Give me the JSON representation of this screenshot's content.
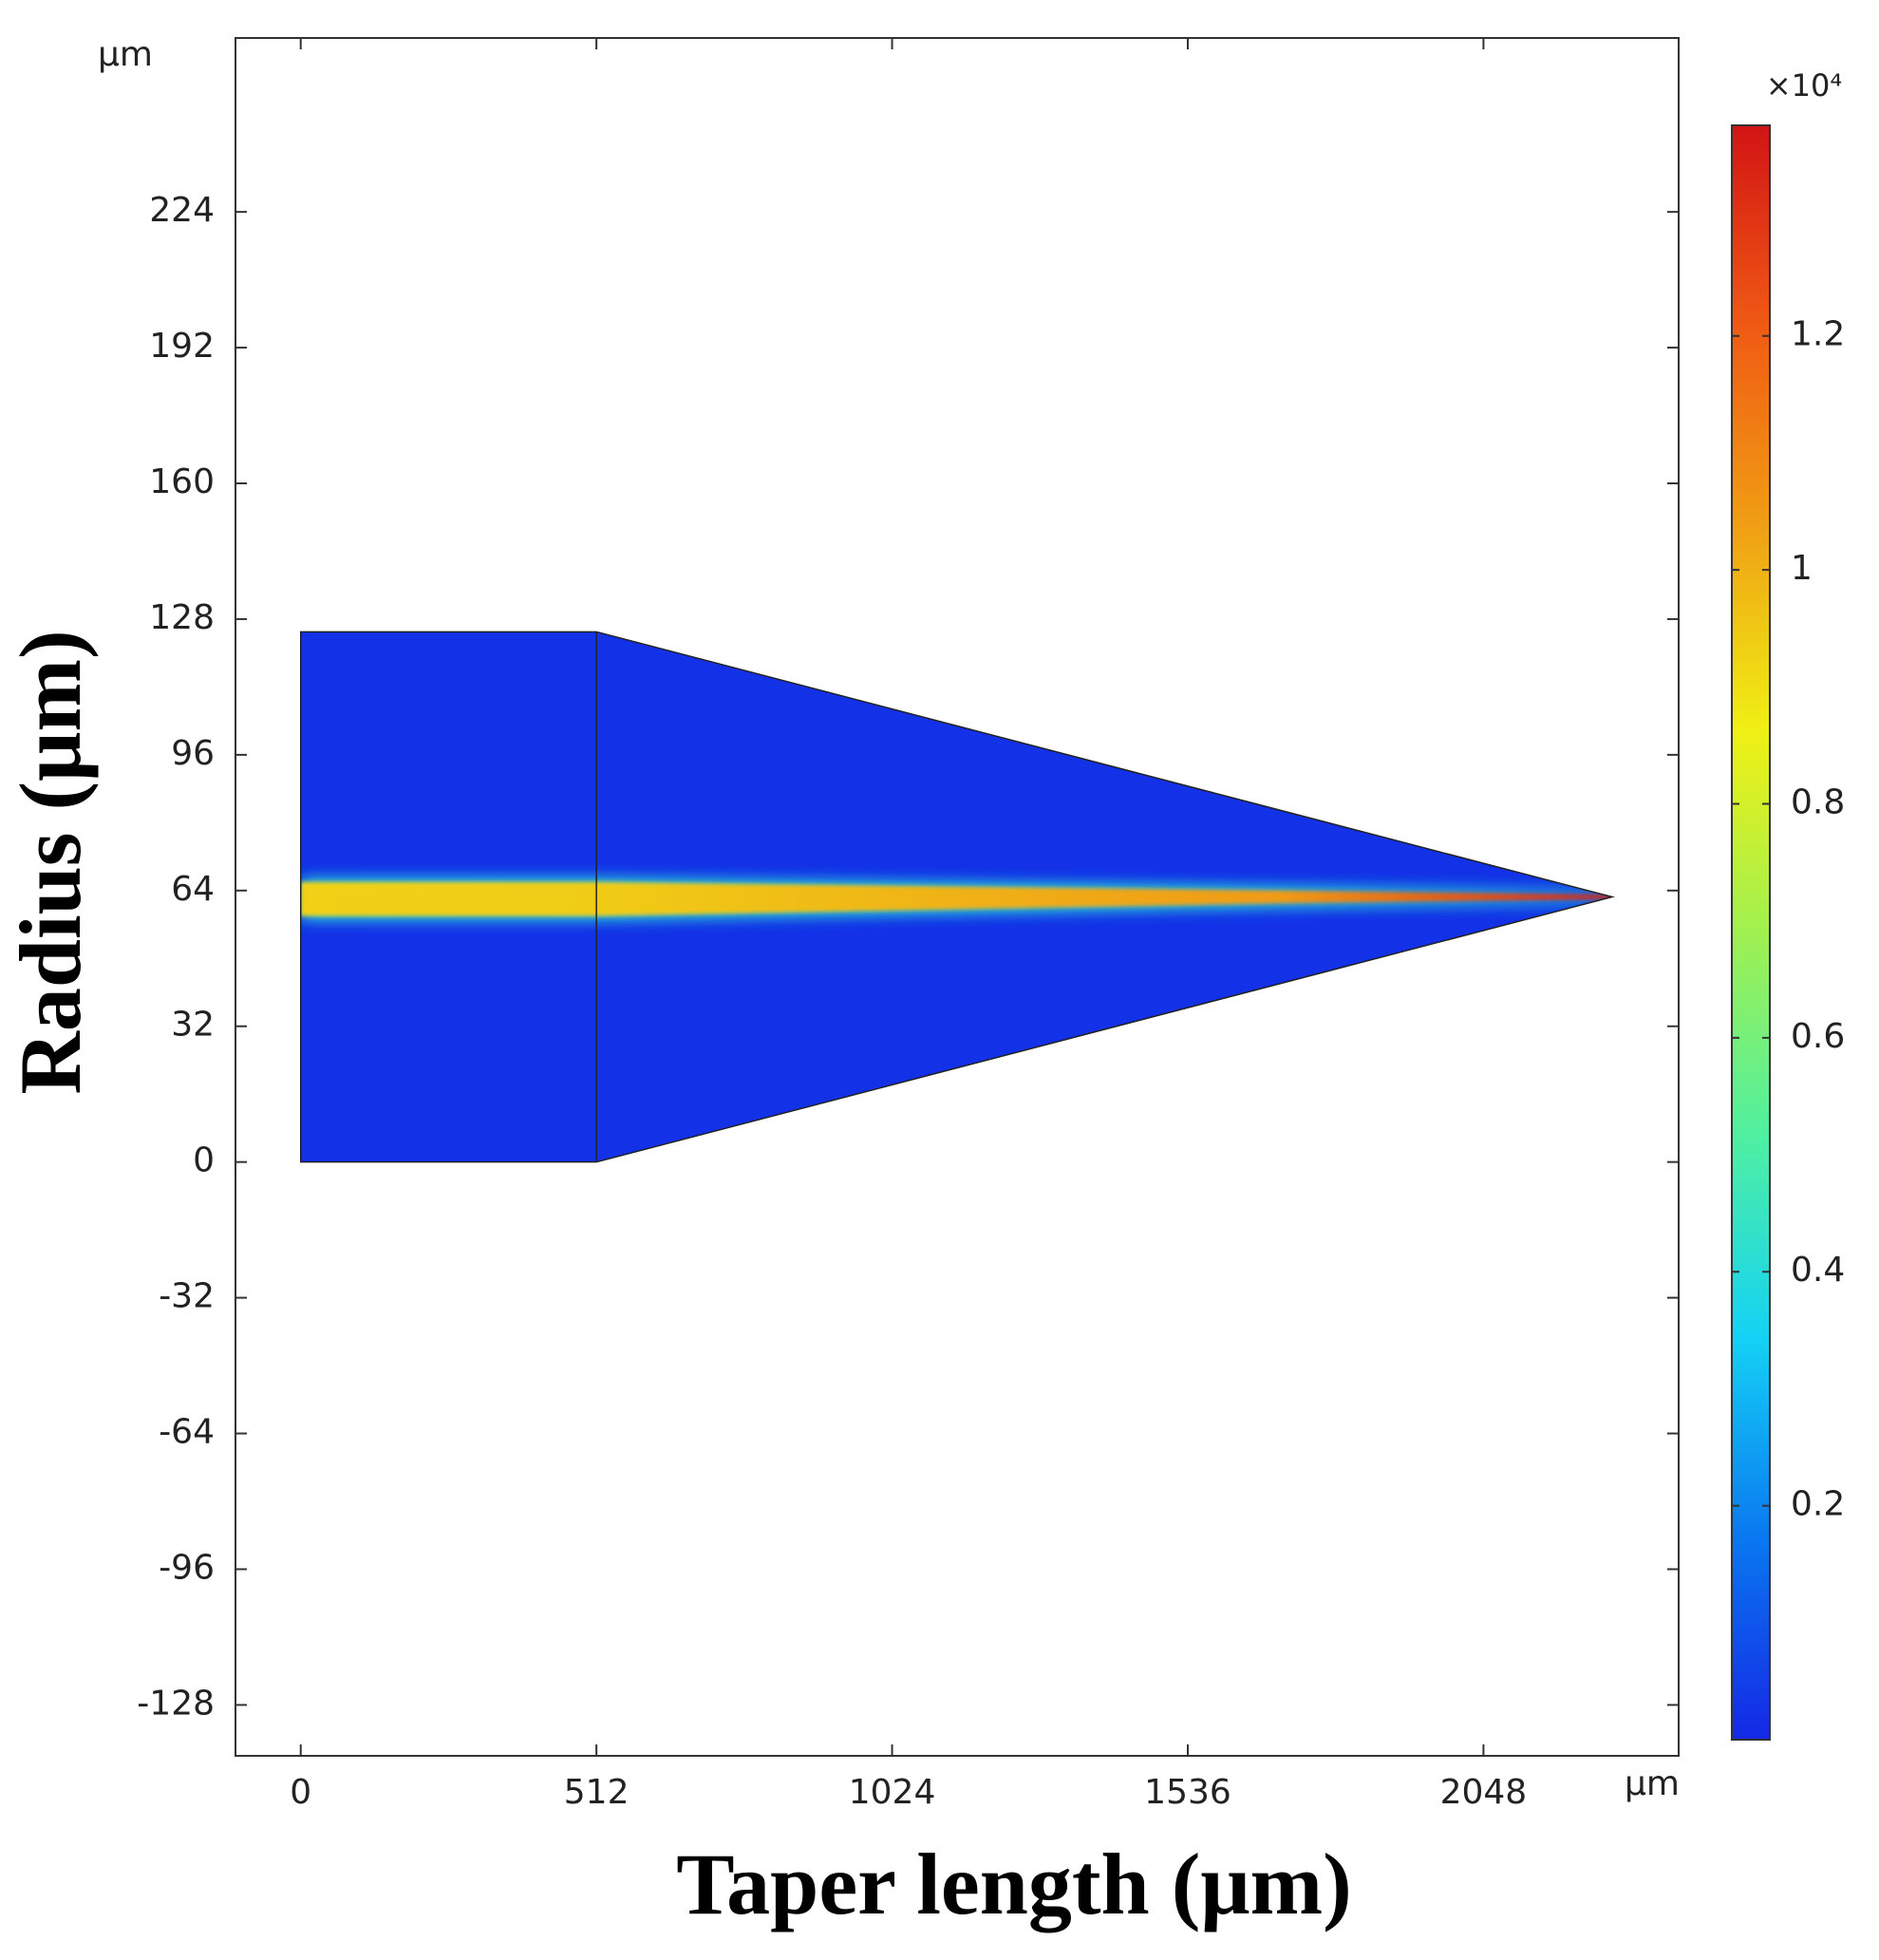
{
  "chart_data": {
    "type": "field",
    "x_label": "Taper length (μm)",
    "y_label": "Radius (μm)",
    "x_unit": "μm",
    "y_unit": "μm",
    "xlim": [
      -113,
      2386
    ],
    "ylim": [
      -140,
      265
    ],
    "xticks": [
      0,
      512,
      1024,
      1536,
      2048
    ],
    "yticks": [
      -128,
      -96,
      -64,
      -32,
      0,
      32,
      64,
      96,
      128,
      160,
      192,
      224
    ],
    "geometry": {
      "x": [
        0,
        0,
        512,
        2271,
        512
      ],
      "y": [
        0,
        125,
        125,
        62.5,
        0
      ]
    },
    "cladding_value": 0.02,
    "core": {
      "x": [
        0,
        512,
        1700,
        2271
      ],
      "upper": [
        66,
        66,
        64,
        63
      ],
      "lower": [
        58,
        58,
        61,
        62
      ],
      "values": [
        0.93,
        0.94,
        1.05,
        1.35
      ]
    },
    "colorbar": {
      "multiplier": "×10⁴",
      "clim": [
        0,
        1.38
      ],
      "ticks": [
        0.2,
        0.4,
        0.6,
        0.8,
        1,
        1.2
      ],
      "colormap": [
        "#1428e6",
        "#0a78f0",
        "#14d2f5",
        "#50f0a0",
        "#a0f050",
        "#f0f014",
        "#f0a014",
        "#f05a14",
        "#d21414"
      ]
    }
  }
}
